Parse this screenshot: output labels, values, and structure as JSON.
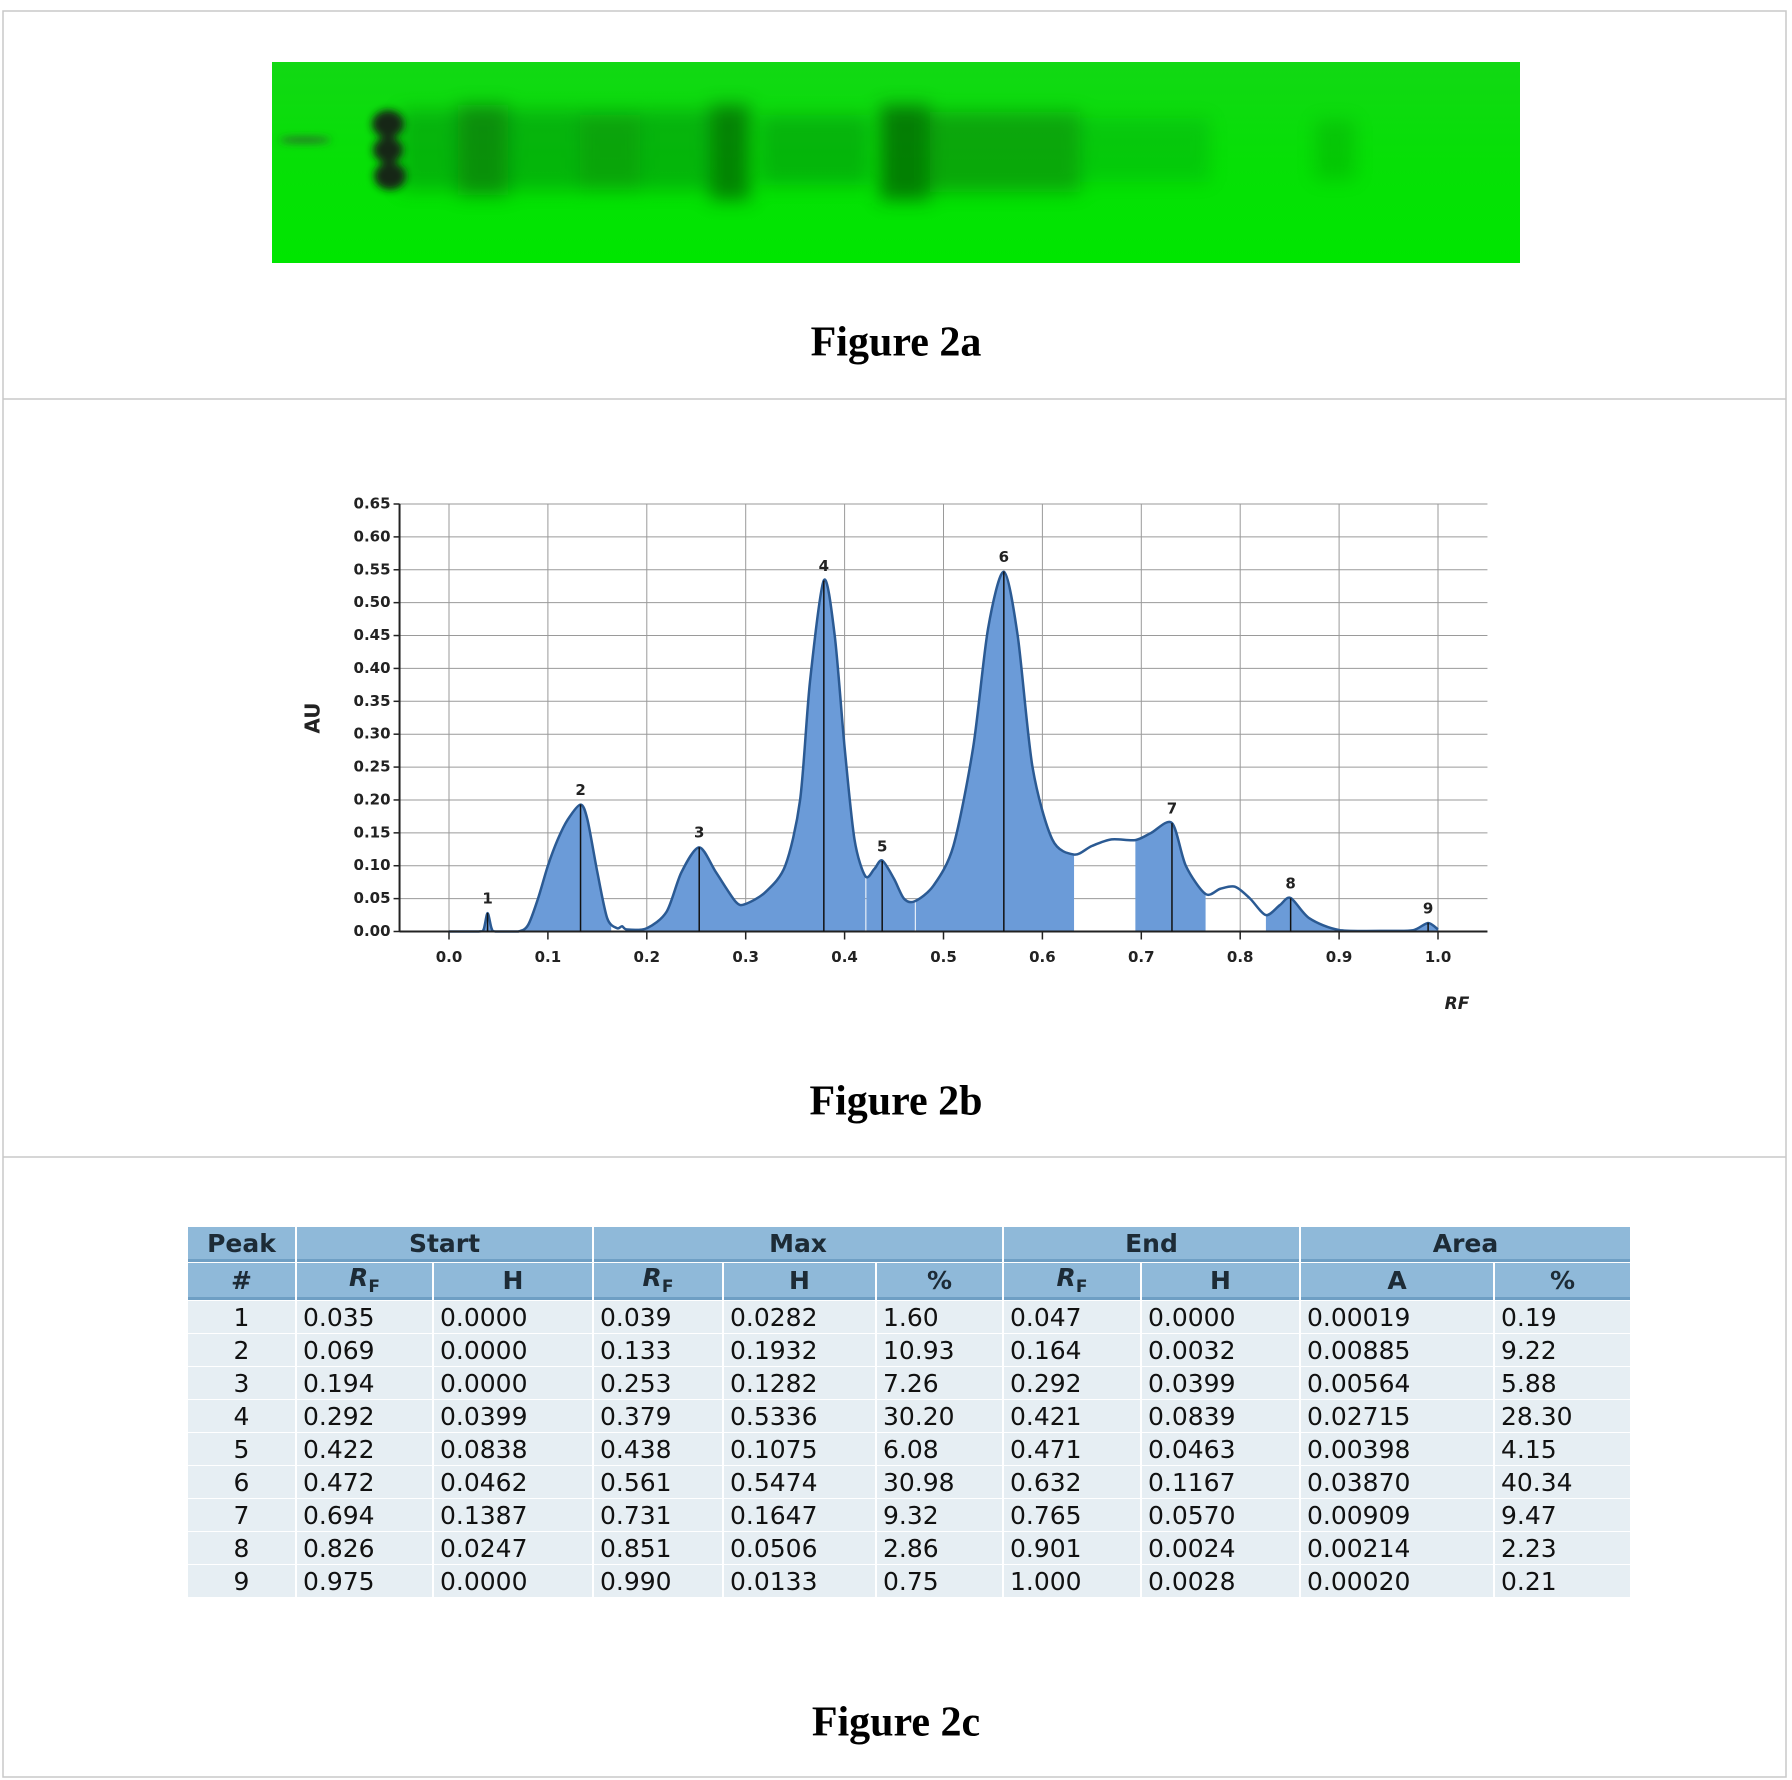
{
  "figure_a": {
    "caption": "Figure 2a"
  },
  "chart_data": {
    "type": "area",
    "caption": "Figure 2b",
    "y_label": "AU",
    "x_label": "RF",
    "x": [
      0,
      0.03,
      0.035,
      0.039,
      0.043,
      0.047,
      0.07,
      0.08,
      0.09,
      0.1,
      0.11,
      0.12,
      0.133,
      0.14,
      0.15,
      0.16,
      0.17,
      0.175,
      0.18,
      0.2,
      0.22,
      0.235,
      0.253,
      0.27,
      0.29,
      0.3,
      0.32,
      0.34,
      0.355,
      0.365,
      0.379,
      0.39,
      0.4,
      0.41,
      0.421,
      0.43,
      0.438,
      0.45,
      0.46,
      0.471,
      0.49,
      0.51,
      0.53,
      0.545,
      0.561,
      0.575,
      0.59,
      0.61,
      0.632,
      0.65,
      0.67,
      0.694,
      0.71,
      0.731,
      0.745,
      0.765,
      0.78,
      0.795,
      0.81,
      0.826,
      0.84,
      0.851,
      0.87,
      0.901,
      0.95,
      0.975,
      0.99,
      1.0
    ],
    "values": [
      0,
      0,
      0.003,
      0.028,
      0.005,
      0,
      0,
      0.01,
      0.05,
      0.1,
      0.14,
      0.17,
      0.193,
      0.17,
      0.09,
      0.02,
      0.005,
      0.008,
      0.003,
      0.005,
      0.03,
      0.09,
      0.128,
      0.09,
      0.045,
      0.042,
      0.06,
      0.1,
      0.2,
      0.38,
      0.534,
      0.45,
      0.28,
      0.14,
      0.084,
      0.095,
      0.108,
      0.08,
      0.05,
      0.046,
      0.07,
      0.13,
      0.28,
      0.46,
      0.547,
      0.45,
      0.25,
      0.14,
      0.117,
      0.13,
      0.14,
      0.139,
      0.15,
      0.165,
      0.1,
      0.057,
      0.065,
      0.068,
      0.05,
      0.025,
      0.04,
      0.051,
      0.02,
      0.002,
      0.001,
      0.002,
      0.013,
      0.003
    ],
    "color": "#6b9bd8",
    "line_color": "#2b5a93",
    "xlim": [
      -0.05,
      1.05
    ],
    "ylim": [
      0,
      0.65
    ],
    "xticks": [
      {
        "value": 0,
        "label": "0.0"
      },
      0.1,
      0.2,
      0.3,
      0.4,
      0.5,
      0.6,
      0.7,
      0.8,
      0.9,
      {
        "value": 1,
        "label": "1.0"
      }
    ],
    "yticks": [
      {
        "value": 0,
        "label": "0.00"
      },
      0.05,
      {
        "value": 0.1,
        "label": "0.10"
      },
      0.15,
      {
        "value": 0.2,
        "label": "0.20"
      },
      0.25,
      {
        "value": 0.3,
        "label": "0.30"
      },
      0.35,
      {
        "value": 0.4,
        "label": "0.40"
      },
      0.45,
      {
        "value": 0.5,
        "label": "0.50"
      },
      0.55,
      {
        "value": 0.6,
        "label": "0.60"
      },
      0.65
    ],
    "grid": true,
    "annotations": [
      {
        "text": "1",
        "x": 0.039,
        "y": 0.0282
      },
      {
        "text": "2",
        "x": 0.133,
        "y": 0.1932
      },
      {
        "text": "3",
        "x": 0.253,
        "y": 0.1282
      },
      {
        "text": "4",
        "x": 0.379,
        "y": 0.5336
      },
      {
        "text": "5",
        "x": 0.438,
        "y": 0.1075
      },
      {
        "text": "6",
        "x": 0.561,
        "y": 0.5474
      },
      {
        "text": "7",
        "x": 0.731,
        "y": 0.1647
      },
      {
        "text": "8",
        "x": 0.851,
        "y": 0.0506
      },
      {
        "text": "9",
        "x": 0.99,
        "y": 0.0133
      }
    ]
  },
  "table": {
    "caption": "Figure 2c",
    "peak_header": [
      "Peak",
      "#"
    ],
    "groups": [
      {
        "name": "Start",
        "columns": [
          {
            "main": "R",
            "sub": "F"
          },
          {
            "main": "H"
          }
        ]
      },
      {
        "name": "Max",
        "columns": [
          {
            "main": "R",
            "sub": "F"
          },
          {
            "main": "H"
          },
          {
            "main": "%"
          }
        ]
      },
      {
        "name": "End",
        "columns": [
          {
            "main": "R",
            "sub": "F"
          },
          {
            "main": "H"
          }
        ]
      },
      {
        "name": "Area",
        "columns": [
          {
            "main": "A"
          },
          {
            "main": "%"
          }
        ]
      }
    ],
    "rows": [
      [
        "1",
        "0.035",
        "0.0000",
        "0.039",
        "0.0282",
        "1.60",
        "0.047",
        "0.0000",
        "0.00019",
        "0.19"
      ],
      [
        "2",
        "0.069",
        "0.0000",
        "0.133",
        "0.1932",
        "10.93",
        "0.164",
        "0.0032",
        "0.00885",
        "9.22"
      ],
      [
        "3",
        "0.194",
        "0.0000",
        "0.253",
        "0.1282",
        "7.26",
        "0.292",
        "0.0399",
        "0.00564",
        "5.88"
      ],
      [
        "4",
        "0.292",
        "0.0399",
        "0.379",
        "0.5336",
        "30.20",
        "0.421",
        "0.0839",
        "0.02715",
        "28.30"
      ],
      [
        "5",
        "0.422",
        "0.0838",
        "0.438",
        "0.1075",
        "6.08",
        "0.471",
        "0.0463",
        "0.00398",
        "4.15"
      ],
      [
        "6",
        "0.472",
        "0.0462",
        "0.561",
        "0.5474",
        "30.98",
        "0.632",
        "0.1167",
        "0.03870",
        "40.34"
      ],
      [
        "7",
        "0.694",
        "0.1387",
        "0.731",
        "0.1647",
        "9.32",
        "0.765",
        "0.0570",
        "0.00909",
        "9.47"
      ],
      [
        "8",
        "0.826",
        "0.0247",
        "0.851",
        "0.0506",
        "2.86",
        "0.901",
        "0.0024",
        "0.00214",
        "2.23"
      ],
      [
        "9",
        "0.975",
        "0.0000",
        "0.990",
        "0.0133",
        "0.75",
        "1.000",
        "0.0028",
        "0.00020",
        "0.21"
      ]
    ]
  }
}
